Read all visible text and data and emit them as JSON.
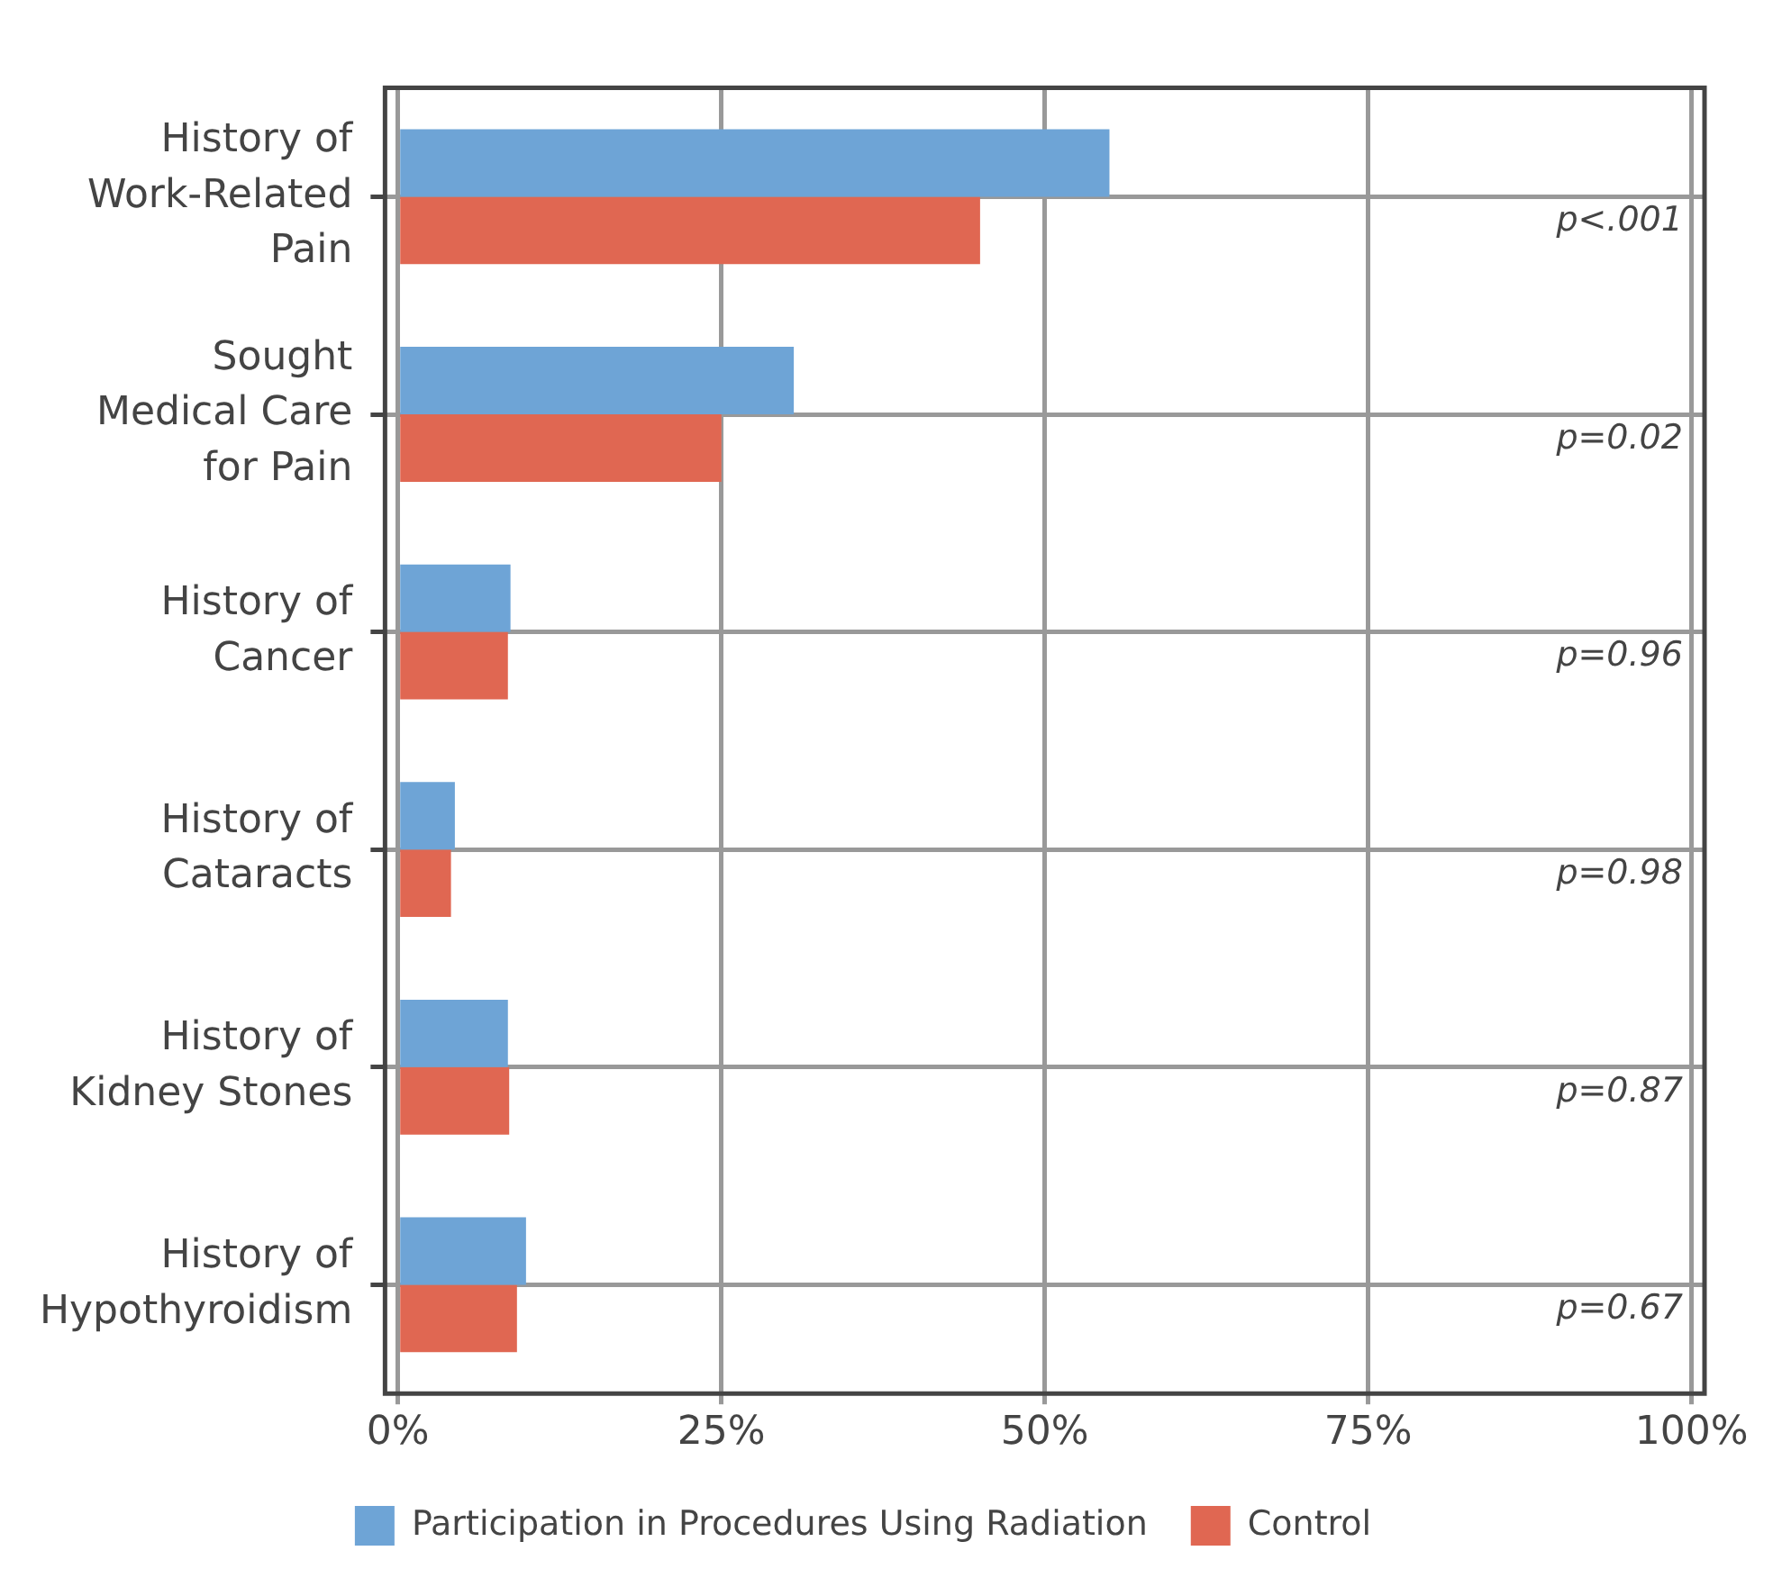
{
  "chart_data": {
    "type": "bar",
    "orientation": "horizontal",
    "categories": [
      "History of\nWork-Related\nPain",
      "Sought\nMedical Care\nfor Pain",
      "History of\nCancer",
      "History of\nCataracts",
      "History of\nKidney Stones",
      "History of\nHypothyroidism"
    ],
    "series": [
      {
        "name": "Participation in Procedures Using Radiation",
        "color": "#6ea4d6",
        "values": [
          55,
          30.6,
          8.7,
          4.4,
          8.5,
          9.9
        ]
      },
      {
        "name": "Control",
        "color": "#e06752",
        "values": [
          45,
          25,
          8.5,
          4.1,
          8.6,
          9.2
        ]
      }
    ],
    "xlim": [
      -1,
      101
    ],
    "xticks": [
      {
        "value": 0,
        "label": "0%"
      },
      {
        "value": 25,
        "label": "25%"
      },
      {
        "value": 50,
        "label": "50%"
      },
      {
        "value": 75,
        "label": "75%"
      },
      {
        "value": 100,
        "label": "100%"
      }
    ],
    "grid": true,
    "legend": "bottom",
    "annotations": [
      "p<.001",
      "p=0.02",
      "p=0.96",
      "p=0.98",
      "p=0.87",
      "p=0.67"
    ]
  }
}
